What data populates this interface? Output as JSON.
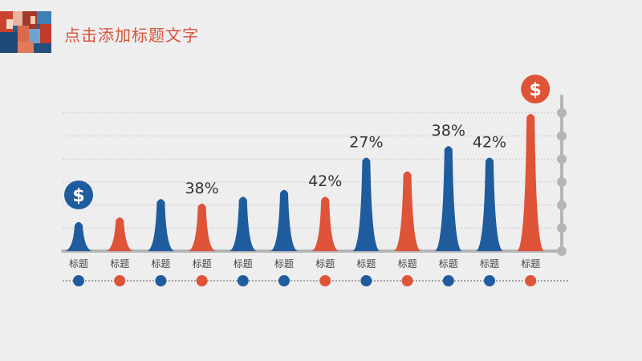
{
  "slide": {
    "title": "点击添加标题文字"
  },
  "colors": {
    "blue": "#1f5c9e",
    "orange": "#df5338",
    "axis": "#b5b5b5",
    "background": "#eeeeee"
  },
  "icons": {
    "left": "dollar-icon",
    "right": "dollar-icon"
  },
  "chart_data": {
    "type": "bar",
    "categories": [
      "标题",
      "标题",
      "标题",
      "标题",
      "标题",
      "标题",
      "标题",
      "标题",
      "标题",
      "标题",
      "标题",
      "标题"
    ],
    "values": [
      1.3,
      1.5,
      2.3,
      2.1,
      2.4,
      2.7,
      2.4,
      4.1,
      3.5,
      4.6,
      4.1,
      6.0
    ],
    "colors": [
      "blue",
      "orange",
      "blue",
      "orange",
      "blue",
      "blue",
      "orange",
      "blue",
      "orange",
      "blue",
      "blue",
      "orange"
    ],
    "data_labels": [
      "",
      "",
      "",
      "38%",
      "",
      "",
      "42%",
      "27%",
      "",
      "38%",
      "42%",
      ""
    ],
    "ylim": [
      0,
      6.0
    ],
    "grid": true,
    "dollar_markers": [
      "$",
      "$"
    ]
  }
}
